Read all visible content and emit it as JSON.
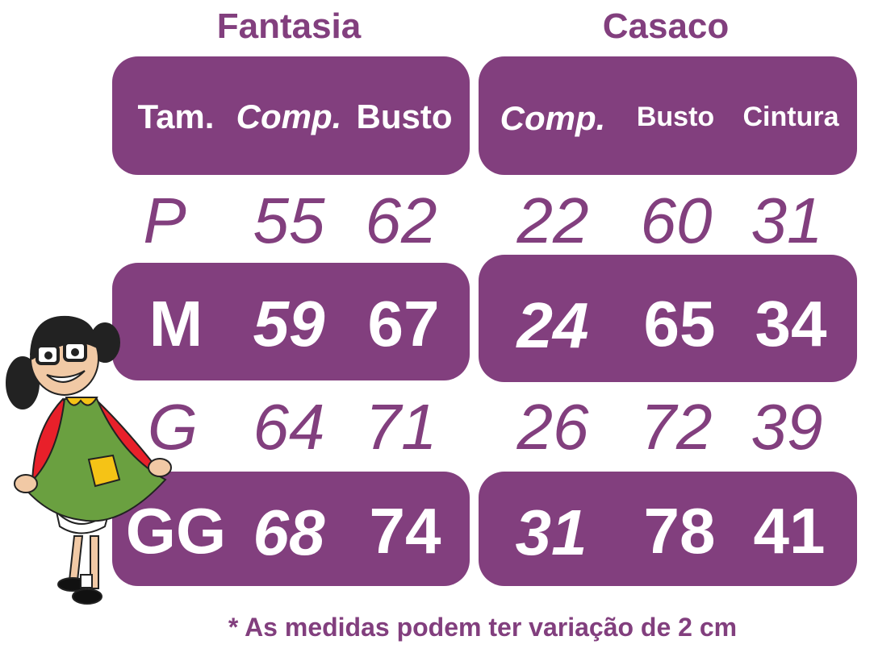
{
  "accent_color": "#823f7e",
  "fantasia": {
    "title": "Fantasia",
    "headers": [
      "Tam.",
      "Comp.",
      "Busto"
    ],
    "rows": [
      {
        "size": "P",
        "comp": "55",
        "busto": "62"
      },
      {
        "size": "M",
        "comp": "59",
        "busto": "67"
      },
      {
        "size": "G",
        "comp": "64",
        "busto": "71"
      },
      {
        "size": "GG",
        "comp": "68",
        "busto": "74"
      }
    ]
  },
  "casaco": {
    "title": "Casaco",
    "headers": [
      "Comp.",
      "Busto",
      "Cintura"
    ],
    "rows": [
      {
        "comp": "22",
        "busto": "60",
        "cintura": "31"
      },
      {
        "comp": "24",
        "busto": "65",
        "cintura": "34"
      },
      {
        "comp": "26",
        "busto": "72",
        "cintura": "39"
      },
      {
        "comp": "31",
        "busto": "78",
        "cintura": "41"
      }
    ]
  },
  "footnote": "* As medidas podem ter variação de 2 cm",
  "illustration": "cartoon-girl-character"
}
